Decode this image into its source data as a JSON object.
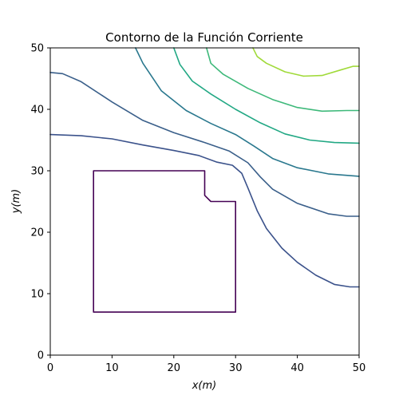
{
  "chart_data": {
    "type": "contour",
    "title": "Contorno de la Función Corriente",
    "xlabel": "x(m)",
    "ylabel": "y(m)",
    "xlim": [
      0,
      50
    ],
    "ylim": [
      0,
      50
    ],
    "xticks": [
      0,
      10,
      20,
      30,
      40,
      50
    ],
    "yticks": [
      0,
      10,
      20,
      30,
      40,
      50
    ],
    "grid": false,
    "legend": "none",
    "series": [
      {
        "color": "#440154",
        "points": [
          [
            7,
            7
          ],
          [
            30,
            7
          ],
          [
            30,
            25
          ],
          [
            26,
            25
          ],
          [
            25,
            26
          ],
          [
            25,
            30
          ],
          [
            7,
            30
          ],
          [
            7,
            7
          ]
        ]
      },
      {
        "color": "#3b528b",
        "points": [
          [
            0,
            35.9
          ],
          [
            5,
            35.7
          ],
          [
            10,
            35.2
          ],
          [
            15,
            34.2
          ],
          [
            20,
            33.3
          ],
          [
            24,
            32.5
          ],
          [
            27,
            31.4
          ],
          [
            29.5,
            30.9
          ],
          [
            31,
            29.6
          ],
          [
            32,
            27.2
          ],
          [
            33.5,
            23.5
          ],
          [
            35,
            20.6
          ],
          [
            37.5,
            17.4
          ],
          [
            40,
            15.1
          ],
          [
            43,
            13.0
          ],
          [
            46,
            11.5
          ],
          [
            48.5,
            11.1
          ],
          [
            50,
            11.1
          ]
        ]
      },
      {
        "color": "#3a5f8a",
        "points": [
          [
            0,
            46
          ],
          [
            2,
            45.8
          ],
          [
            5,
            44.5
          ],
          [
            10,
            41.2
          ],
          [
            15,
            38.2
          ],
          [
            20,
            36.2
          ],
          [
            25,
            34.6
          ],
          [
            29,
            33.2
          ],
          [
            32,
            31.3
          ],
          [
            34,
            29.0
          ],
          [
            36,
            27.0
          ],
          [
            40,
            24.7
          ],
          [
            45,
            23.0
          ],
          [
            48,
            22.6
          ],
          [
            50,
            22.6
          ]
        ]
      },
      {
        "color": "#2a788e",
        "points": [
          [
            13.8,
            50
          ],
          [
            15,
            47.5
          ],
          [
            18,
            43.0
          ],
          [
            22,
            39.8
          ],
          [
            26,
            37.7
          ],
          [
            30,
            35.9
          ],
          [
            33,
            34.0
          ],
          [
            36,
            32.0
          ],
          [
            40,
            30.5
          ],
          [
            45,
            29.5
          ],
          [
            50,
            29.1
          ]
        ]
      },
      {
        "color": "#22a884",
        "points": [
          [
            20,
            50
          ],
          [
            21,
            47.3
          ],
          [
            23,
            44.6
          ],
          [
            26,
            42.5
          ],
          [
            30,
            40.0
          ],
          [
            34,
            37.8
          ],
          [
            38,
            36.0
          ],
          [
            42,
            35.0
          ],
          [
            46,
            34.6
          ],
          [
            50,
            34.5
          ]
        ]
      },
      {
        "color": "#3eb97a",
        "points": [
          [
            25.3,
            50
          ],
          [
            26,
            47.5
          ],
          [
            28,
            45.7
          ],
          [
            32,
            43.4
          ],
          [
            36,
            41.6
          ],
          [
            40,
            40.3
          ],
          [
            44,
            39.7
          ],
          [
            48,
            39.8
          ],
          [
            50,
            39.8
          ]
        ]
      },
      {
        "color": "#a0da39",
        "points": [
          [
            32.8,
            50
          ],
          [
            33.5,
            48.6
          ],
          [
            35,
            47.5
          ],
          [
            38,
            46.1
          ],
          [
            41,
            45.4
          ],
          [
            44,
            45.5
          ],
          [
            47,
            46.4
          ],
          [
            49,
            47.0
          ],
          [
            50,
            47.0
          ]
        ]
      }
    ]
  }
}
